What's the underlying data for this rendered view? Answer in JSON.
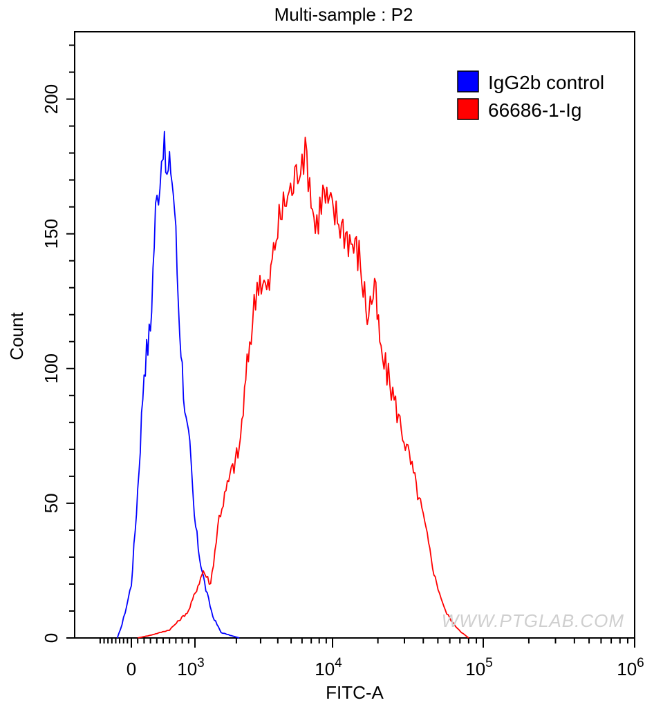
{
  "chart_data": {
    "type": "line",
    "title": "Multi-sample : P2",
    "xlabel": "FITC-A",
    "ylabel": "Count",
    "x_scale": "biexponential",
    "x_range": [
      -400,
      1000000
    ],
    "ylim": [
      0,
      225
    ],
    "y_ticks": [
      0,
      50,
      100,
      150,
      200
    ],
    "y_tick_labels": [
      "0",
      "50",
      "100",
      "150",
      "200"
    ],
    "x_ticks": [
      0,
      1000,
      10000,
      100000,
      1000000
    ],
    "x_tick_labels": [
      {
        "base": "0",
        "exp": ""
      },
      {
        "base": "10",
        "exp": "3"
      },
      {
        "base": "10",
        "exp": "4"
      },
      {
        "base": "10",
        "exp": "5"
      },
      {
        "base": "10",
        "exp": "6"
      }
    ],
    "legend_position": "top-right",
    "series": [
      {
        "name": "IgG2b control",
        "color": "#0000ff",
        "x": [
          -180,
          -120,
          -60,
          0,
          60,
          120,
          200,
          300,
          380,
          450,
          500,
          560,
          620,
          680,
          740,
          800,
          860,
          920,
          990,
          1080,
          1200,
          1350,
          1550,
          1800,
          2100
        ],
        "values": [
          0,
          5,
          12,
          20,
          40,
          63,
          100,
          115,
          158,
          172,
          185,
          170,
          176,
          160,
          125,
          100,
          80,
          70,
          45,
          30,
          18,
          8,
          2,
          1,
          0
        ]
      },
      {
        "name": "66686-1-Ig",
        "color": "#ff0000",
        "x": [
          100,
          300,
          600,
          900,
          1150,
          1300,
          1500,
          1800,
          2100,
          2500,
          2900,
          3400,
          3900,
          4500,
          5200,
          6000,
          6500,
          7500,
          8500,
          9500,
          11000,
          13000,
          15000,
          17000,
          19000,
          21000,
          24000,
          28000,
          33000,
          40000,
          48000,
          56000,
          64000,
          72000,
          80000
        ],
        "values": [
          0,
          1,
          3,
          10,
          25,
          20,
          45,
          60,
          70,
          110,
          135,
          128,
          150,
          162,
          168,
          180,
          178,
          152,
          165,
          160,
          155,
          148,
          142,
          120,
          130,
          105,
          95,
          80,
          65,
          45,
          22,
          10,
          5,
          2,
          0
        ]
      }
    ]
  },
  "watermark": "WWW.PTGLAB.COM"
}
